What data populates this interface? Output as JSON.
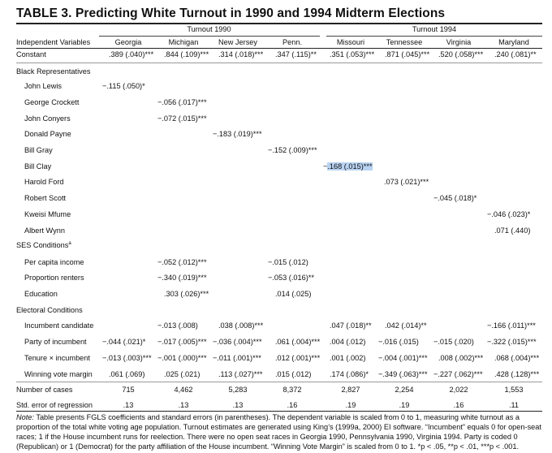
{
  "title": "TABLE 3.   Predicting White Turnout in 1990 and 1994 Midterm Elections",
  "groups": {
    "g1990": "Turnout 1990",
    "g1994": "Turnout 1994"
  },
  "headers": {
    "var": "Independent Variables",
    "cols": [
      "Georgia",
      "Michigan",
      "New Jersey",
      "Penn.",
      "Missouri",
      "Tennessee",
      "Virginia",
      "Maryland"
    ]
  },
  "rows": {
    "constant": {
      "label": "Constant",
      "vals": [
        ".389 (.040)***",
        ".844 (.109)***",
        ".314 (.018)***",
        ".347 (.115)**",
        ".351 (.053)***",
        ".871 (.045)***",
        ".520 (.058)***",
        ".240 (.081)**"
      ]
    },
    "black_reps": "Black Representatives",
    "john_lewis": {
      "label": "John Lewis",
      "val": "−.115 (.050)*"
    },
    "george_crockett": {
      "label": "George Crockett",
      "val": "−.056 (.017)***"
    },
    "john_conyers": {
      "label": "John Conyers",
      "val": "−.072 (.015)***"
    },
    "donald_payne": {
      "label": "Donald Payne",
      "val": "−.183 (.019)***"
    },
    "bill_gray": {
      "label": "Bill Gray",
      "val": "−.152 (.009)***"
    },
    "bill_clay": {
      "label": "Bill Clay",
      "val_pre": "−",
      "val_hl": ".168 (.015)***"
    },
    "harold_ford": {
      "label": "Harold Ford",
      "val": ".073 (.021)***"
    },
    "robert_scott": {
      "label": "Robert Scott",
      "val": "−.045 (.018)*"
    },
    "kweisi_mfume": {
      "label": "Kweisi Mfume",
      "val": "−.046 (.023)*"
    },
    "albert_wynn": {
      "label": "Albert Wynn",
      "val": ".071 (.440)"
    },
    "ses": "SES Conditions",
    "ses_sup": "a",
    "per_capita": {
      "label": "Per capita income",
      "mi": "−.052 (.012)***",
      "pa": "−.015 (.012)"
    },
    "prop_renters": {
      "label": "Proportion renters",
      "mi": "−.340 (.019)***",
      "pa": "−.053 (.016)**"
    },
    "education": {
      "label": "Education",
      "mi": ".303 (.026)***",
      "pa": ".014 (.025)"
    },
    "electoral": "Electoral Conditions",
    "incumbent_candidate": {
      "label": "Incumbent candidate",
      "vals": [
        "",
        "−.013 (.008)",
        ".038 (.008)***",
        "",
        ".047 (.018)**",
        ".042 (.014)**",
        "",
        "−.166 (.011)***"
      ]
    },
    "party_incumbent": {
      "label": "Party of incumbent",
      "vals": [
        "−.044 (.021)*",
        "−.017 (.005)***",
        "−.036 (.004)***",
        ".061 (.004)***",
        ".004 (.012)",
        "−.016 (.015)",
        "−.015 (.020)",
        "−.322 (.015)***"
      ]
    },
    "tenure_incumbent": {
      "label": "Tenure × incumbent",
      "vals": [
        "−.013 (.003)***",
        "−.001 (.000)***",
        "−.011 (.001)***",
        ".012 (.001)***",
        ".001 (.002)",
        "−.004 (.001)***",
        ".008 (.002)***",
        ".068 (.004)***"
      ]
    },
    "winning_margin": {
      "label": "Winning vote margin",
      "vals": [
        ".061 (.069)",
        ".025 (.021)",
        ".113 (.027)***",
        ".015 (.012)",
        ".174 (.086)*",
        "−.349 (.063)***",
        "−.227 (.062)***",
        ".428 (.128)***"
      ]
    },
    "num_cases": {
      "label": "Number of cases",
      "vals": [
        "715",
        "4,462",
        "5,283",
        "8,372",
        "2,827",
        "2,254",
        "2,022",
        "1,553"
      ]
    },
    "std_error": {
      "label": "Std. error of regression",
      "vals": [
        ".13",
        ".13",
        ".13",
        ".16",
        ".19",
        ".19",
        ".16",
        ".11"
      ]
    }
  },
  "note": {
    "prefix": "Note:",
    "text": " Table presents FGLS coefficients and standard errors (in parentheses). The dependent variable is scaled from 0 to 1, measuring white turnout as a proportion of the total white voting age population. Turnout estimates are generated using King’s (1999a, 2000) EI software. “Incumbent” equals 0 for open-seat races; 1 if the House incumbent runs for reelection. There were no open seat races in Georgia 1990, Pennsylvania 1990, Virginia 1994. Party is coded 0 (Republican) or 1 (Democrat) for the party affiliation of the House incumbent. “Winning Vote Margin” is scaled from 0 to 1. *p < .05, **p < .01, ***p < .001."
  }
}
